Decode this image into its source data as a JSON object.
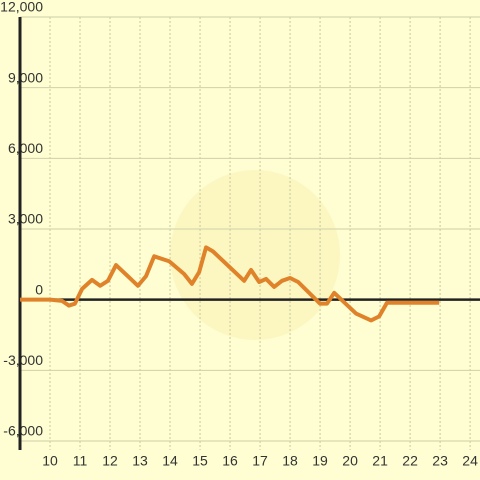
{
  "chart_data": {
    "type": "line",
    "x": [
      9,
      10,
      10.4,
      10.63,
      10.83,
      11.07,
      11.4,
      11.67,
      11.93,
      12.2,
      12.93,
      13.2,
      13.47,
      13.97,
      14.47,
      14.73,
      14.97,
      15.2,
      15.43,
      16.47,
      16.7,
      16.97,
      17.2,
      17.47,
      17.73,
      18,
      18.27,
      19,
      19.23,
      19.47,
      20.2,
      20.7,
      20.97,
      21.23,
      22.97
    ],
    "series": [
      {
        "color": "#e0822a",
        "values": [
          0,
          0,
          -50,
          -250,
          -170,
          460,
          840,
          590,
          800,
          1470,
          590,
          1000,
          1840,
          1630,
          1090,
          670,
          1170,
          2220,
          2050,
          800,
          1260,
          750,
          880,
          540,
          800,
          920,
          750,
          -170,
          -170,
          290,
          -590,
          -880,
          -710,
          -130,
          -130
        ]
      }
    ],
    "xlim": [
      9,
      24.33
    ],
    "xticks": [
      10,
      11,
      12,
      13,
      14,
      15,
      16,
      17,
      18,
      19,
      20,
      21,
      22,
      23,
      24
    ],
    "ylim": [
      -6000,
      12000
    ],
    "yticks": [
      {
        "value": -6000,
        "label": "-6,000"
      },
      {
        "value": -3000,
        "label": "-3,000"
      },
      0,
      {
        "value": 3000,
        "label": "3,000"
      },
      {
        "value": 6000,
        "label": "6,000"
      },
      {
        "value": 9000,
        "label": "9,000"
      },
      {
        "value": 12000,
        "label": "12,000"
      }
    ],
    "grid": true
  }
}
